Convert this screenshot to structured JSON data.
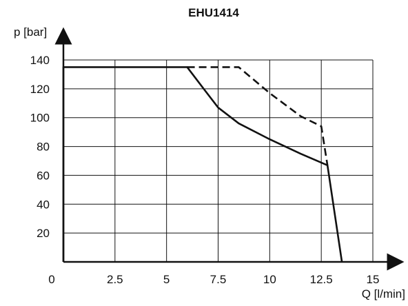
{
  "chart_data": {
    "type": "line",
    "title": "EHU1414",
    "xlabel": "Q [l/min]",
    "ylabel": "p [bar]",
    "xlim": [
      0,
      15
    ],
    "ylim": [
      0,
      140
    ],
    "grid": true,
    "x_ticks": [
      {
        "value": 0,
        "label": "0"
      },
      {
        "value": 2.5,
        "label": "2.5"
      },
      {
        "value": 5,
        "label": "5"
      },
      {
        "value": 7.5,
        "label": "7.5"
      },
      {
        "value": 10,
        "label": "10"
      },
      {
        "value": 12.5,
        "label": "12.5"
      },
      {
        "value": 15,
        "label": "15"
      }
    ],
    "y_ticks": [
      {
        "value": 20,
        "label": "20"
      },
      {
        "value": 40,
        "label": "40"
      },
      {
        "value": 60,
        "label": "60"
      },
      {
        "value": 80,
        "label": "80"
      },
      {
        "value": 100,
        "label": "100"
      },
      {
        "value": 120,
        "label": "120"
      },
      {
        "value": 140,
        "label": "140"
      }
    ],
    "series": [
      {
        "style": "solid",
        "color": "#111111",
        "points": [
          [
            0,
            0
          ],
          [
            0,
            135
          ],
          [
            6,
            135
          ],
          [
            6.8,
            120
          ],
          [
            7.5,
            107
          ],
          [
            8.5,
            96
          ],
          [
            10,
            85
          ],
          [
            11.5,
            75
          ],
          [
            12.8,
            67
          ],
          [
            13.5,
            0
          ]
        ]
      },
      {
        "style": "dashed",
        "color": "#111111",
        "points": [
          [
            6,
            135
          ],
          [
            8.5,
            135
          ],
          [
            10,
            117
          ],
          [
            11.5,
            101
          ],
          [
            12.5,
            94
          ],
          [
            12.8,
            67
          ]
        ]
      }
    ]
  }
}
